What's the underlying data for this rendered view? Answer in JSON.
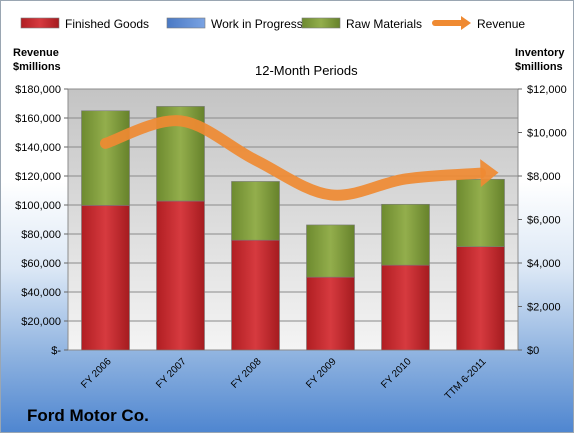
{
  "company": "Ford Motor Co.",
  "chart_data": {
    "type": "bar",
    "stacked": true,
    "title": "12-Month Periods",
    "categories": [
      "FY 2006",
      "FY 2007",
      "FY 2008",
      "FY 2009",
      "FY 2010",
      "TTM 6-2011"
    ],
    "series": [
      {
        "name": "Finished Goods",
        "axis": "right",
        "color": "#c0282d",
        "values": [
          6650,
          6850,
          5050,
          3350,
          3900,
          4750
        ]
      },
      {
        "name": "Work in Progress",
        "axis": "right",
        "color": "#5b8bd6",
        "values": [
          0,
          0,
          0,
          0,
          0,
          0
        ]
      },
      {
        "name": "Raw Materials",
        "axis": "right",
        "color": "#7e9a3c",
        "values": [
          4350,
          4350,
          2700,
          2400,
          2800,
          3100
        ]
      },
      {
        "name": "Revenue",
        "type": "line",
        "axis": "left",
        "color": "#ef8a32",
        "values": [
          142500,
          158000,
          131000,
          107000,
          118000,
          122000
        ]
      }
    ],
    "left_axis": {
      "title": "Revenue\n$millions",
      "min": 0,
      "max": 180000,
      "step": 20000,
      "tick_labels": [
        "$-",
        "$20,000",
        "$40,000",
        "$60,000",
        "$80,000",
        "$100,000",
        "$120,000",
        "$140,000",
        "$160,000",
        "$180,000"
      ]
    },
    "right_axis": {
      "title": "Inventory\n$millions",
      "min": 0,
      "max": 12000,
      "step": 2000,
      "tick_labels": [
        "$0",
        "$2,000",
        "$4,000",
        "$6,000",
        "$8,000",
        "$10,000",
        "$12,000"
      ]
    },
    "legend_position": "top",
    "grid": true
  }
}
